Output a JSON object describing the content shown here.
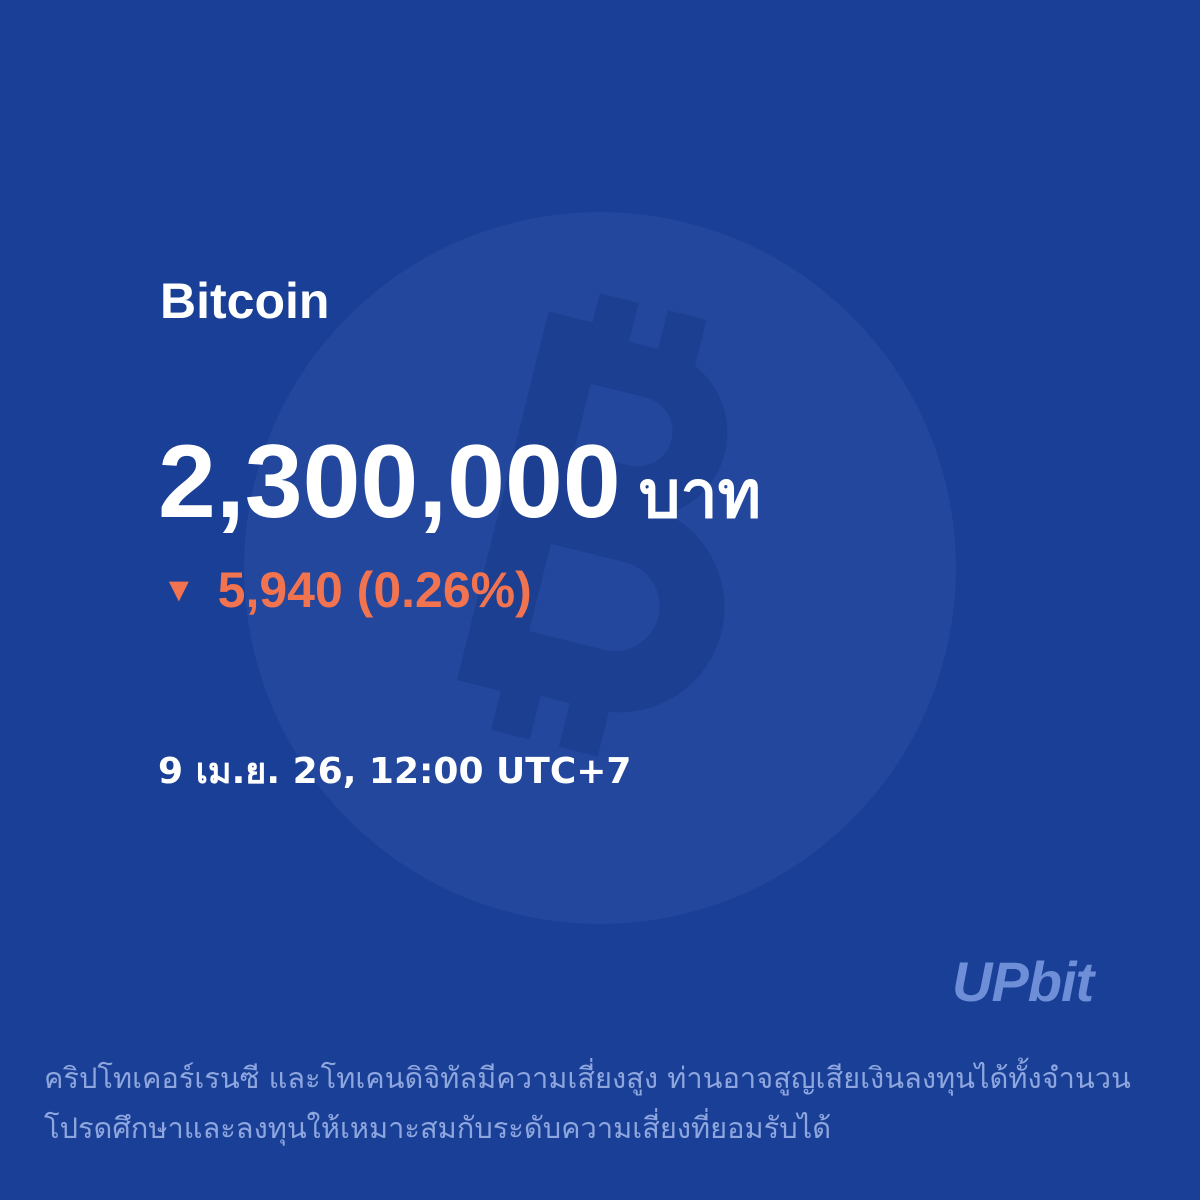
{
  "coin": {
    "name": "Bitcoin",
    "price": "2,300,000",
    "unit": "บาท",
    "change_arrow": "▼",
    "change": "5,940 (0.26%)",
    "timestamp": "9 เม.ย. 26, 12:00 UTC+7"
  },
  "brand": {
    "logo": "UPbit"
  },
  "disclaimer": [
    "คริปโทเคอร์เรนซี และโทเคนดิจิทัลมีความเสี่ยงสูง ท่านอาจสูญเสียเงินลงทุนได้ทั้งจำนวน",
    "โปรดศึกษาและลงทุนให้เหมาะสมกับระดับความเสี่ยงที่ยอมรับได้"
  ]
}
